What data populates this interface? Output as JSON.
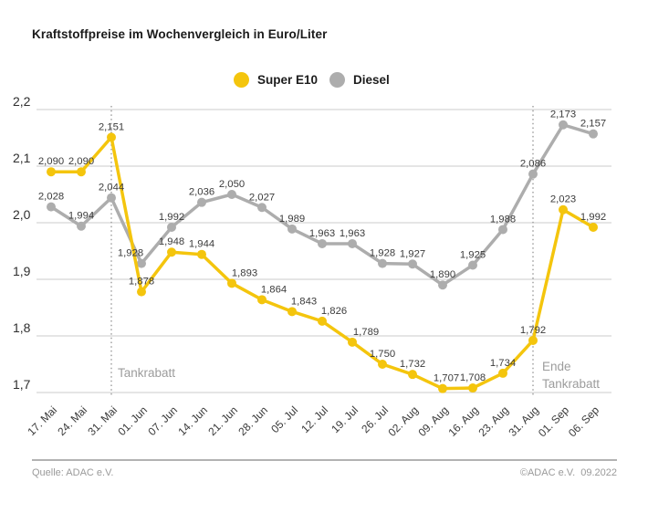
{
  "title": "Kraftstoffpreise im Wochenvergleich in Euro/Liter",
  "footer": {
    "source": "Quelle: ADAC e.V.",
    "copyright": "©ADAC e.V.  09.2022"
  },
  "chart_data": {
    "type": "line",
    "title": "Kraftstoffpreise im Wochenvergleich in Euro/Liter",
    "categories": [
      "17. Mai",
      "24. Mai",
      "31. Mai",
      "01. Jun",
      "07. Jun",
      "14. Jun",
      "21. Jun",
      "28. Jun",
      "05. Jul",
      "12. Jul",
      "19. Jul",
      "26. Jul",
      "02. Aug",
      "09. Aug",
      "16. Aug",
      "23. Aug",
      "31. Aug",
      "01. Sep",
      "06. Sep"
    ],
    "series": [
      {
        "name": "Super E10",
        "color": "#F4C50D",
        "values": [
          2.09,
          2.09,
          2.151,
          1.878,
          1.948,
          1.944,
          1.893,
          1.864,
          1.843,
          1.826,
          1.789,
          1.75,
          1.732,
          1.707,
          1.708,
          1.734,
          1.792,
          2.023,
          1.992
        ]
      },
      {
        "name": "Diesel",
        "color": "#ADADAD",
        "values": [
          2.028,
          1.994,
          2.044,
          1.928,
          1.992,
          2.036,
          2.05,
          2.027,
          1.989,
          1.963,
          1.963,
          1.928,
          1.927,
          1.89,
          1.925,
          1.988,
          2.086,
          2.173,
          2.157
        ]
      }
    ],
    "yticks": [
      2.2,
      2.1,
      2.0,
      1.9,
      1.8,
      1.7
    ],
    "ylim": [
      1.7,
      2.2
    ],
    "grid": true,
    "legend_position": "top",
    "decimal_separator": ",",
    "annotations": [
      {
        "category": "31. Mai",
        "label": "Tankrabatt",
        "line_style": "dotted"
      },
      {
        "category": "31. Aug",
        "label": "Ende Tankrabatt",
        "line_style": "dotted"
      }
    ]
  }
}
